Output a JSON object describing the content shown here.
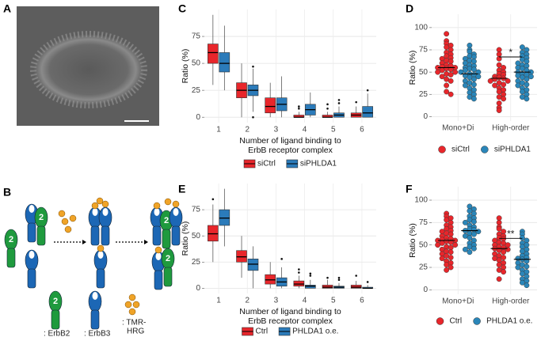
{
  "panels": [
    "A",
    "B",
    "C",
    "D",
    "E",
    "F"
  ],
  "diagram": {
    "receptor_number": "2",
    "legend": [
      ": ErbB2",
      ": ErbB3"
    ],
    "ligand_label": [
      ": TMR-",
      "HRG"
    ]
  },
  "chart_data": [
    {
      "type": "box",
      "ylabel": "Ratio (%)",
      "xlabel": [
        "Number of ligand binding to",
        "ErbB receptor complex"
      ],
      "categories": [
        "1",
        "2",
        "3",
        "4",
        "5",
        "6"
      ],
      "ylim": [
        -5,
        100
      ],
      "yticks": [
        0,
        25,
        50,
        75
      ],
      "grid": true,
      "legend": "bottom",
      "series": [
        {
          "name": "siCtrl",
          "color": "#e8262b",
          "boxes": [
            [
              30,
              50,
              60,
              68,
              95
            ],
            [
              0,
              18,
              25,
              32,
              50
            ],
            [
              0,
              4,
              10,
              18,
              32
            ],
            [
              0,
              0,
              0,
              2,
              5
            ],
            [
              0,
              0,
              0,
              2,
              5
            ],
            [
              0,
              0,
              2,
              4,
              10
            ]
          ],
          "outliers": [
            [],
            [],
            [],
            [
              8,
              10
            ],
            [
              8,
              12
            ],
            [
              14
            ]
          ]
        },
        {
          "name": "siPHLDA1",
          "color": "#2b7bba",
          "boxes": [
            [
              25,
              42,
              50,
              60,
              85
            ],
            [
              5,
              20,
              25,
              30,
              45
            ],
            [
              0,
              6,
              12,
              18,
              38
            ],
            [
              0,
              2,
              7,
              12,
              23
            ],
            [
              0,
              0,
              2,
              4,
              10
            ],
            [
              0,
              0,
              4,
              10,
              22
            ]
          ],
          "outliers": [
            [],
            [
              0,
              47
            ],
            [],
            [],
            [
              13,
              16
            ],
            [
              25
            ]
          ]
        }
      ]
    },
    {
      "type": "strip",
      "ylabel": "Ratio (%)",
      "categories": [
        "Mono+Di",
        "High-order"
      ],
      "ylim": [
        -5,
        115
      ],
      "yticks": [
        0,
        25,
        50,
        75,
        100
      ],
      "grid": true,
      "legend": "bottom",
      "annotation": "*",
      "series": [
        {
          "name": "siCtrl",
          "color": "#e8262b",
          "means": [
            55,
            43
          ],
          "values": [
            [
              93,
              85,
              82,
              80,
              78,
              75,
              72,
              70,
              68,
              66,
              65,
              63,
              62,
              60,
              58,
              57,
              56,
              55,
              55,
              54,
              53,
              52,
              50,
              50,
              48,
              47,
              45,
              42,
              40,
              35,
              28,
              25
            ],
            [
              75,
              70,
              65,
              58,
              55,
              52,
              50,
              48,
              47,
              45,
              44,
              43,
              42,
              40,
              40,
              38,
              36,
              35,
              32,
              30,
              28,
              25,
              22,
              20,
              15,
              10,
              7
            ]
          ]
        },
        {
          "name": "siPHLDA1",
          "color": "#2a86b9",
          "means": [
            48,
            50
          ],
          "values": [
            [
              80,
              75,
              73,
              70,
              68,
              67,
              65,
              63,
              62,
              60,
              58,
              57,
              55,
              54,
              53,
              52,
              50,
              50,
              48,
              47,
              46,
              45,
              44,
              42,
              40,
              38,
              36,
              35,
              32,
              30,
              27,
              25,
              22,
              20
            ],
            [
              78,
              75,
              72,
              70,
              68,
              66,
              64,
              62,
              60,
              58,
              57,
              55,
              54,
              52,
              50,
              50,
              48,
              47,
              46,
              45,
              44,
              42,
              40,
              38,
              36,
              35,
              32,
              30,
              28,
              25,
              22,
              20
            ]
          ]
        }
      ]
    },
    {
      "type": "box",
      "ylabel": "Ratio (%)",
      "xlabel": [
        "Number of ligand binding to",
        "ErbB receptor complex"
      ],
      "categories": [
        "1",
        "2",
        "3",
        "4",
        "5",
        "6"
      ],
      "ylim": [
        -5,
        100
      ],
      "yticks": [
        0,
        25,
        50,
        75
      ],
      "grid": true,
      "legend": "bottom",
      "series": [
        {
          "name": "Ctrl",
          "color": "#e8262b",
          "boxes": [
            [
              25,
              45,
              52,
              60,
              80
            ],
            [
              10,
              25,
              30,
              36,
              50
            ],
            [
              0,
              4,
              8,
              13,
              25
            ],
            [
              0,
              2,
              4,
              7,
              12
            ],
            [
              0,
              0,
              1,
              3,
              8
            ],
            [
              0,
              0,
              1,
              3,
              7
            ]
          ],
          "outliers": [
            [
              85
            ],
            [],
            [],
            [
              15,
              18
            ],
            [
              10
            ],
            [
              12
            ]
          ]
        },
        {
          "name": "PHLDA1 o.e.",
          "color": "#2b7bba",
          "boxes": [
            [
              40,
              60,
              67,
              75,
              95
            ],
            [
              0,
              17,
              23,
              28,
              40
            ],
            [
              0,
              2,
              6,
              10,
              20
            ],
            [
              0,
              0,
              2,
              3,
              8
            ],
            [
              0,
              0,
              1,
              2,
              5
            ],
            [
              0,
              0,
              0,
              1,
              3
            ]
          ],
          "outliers": [
            [],
            [],
            [
              28
            ],
            [
              12,
              14
            ],
            [
              8,
              10
            ],
            [
              6
            ]
          ]
        }
      ]
    },
    {
      "type": "strip",
      "ylabel": "Ratio (%)",
      "categories": [
        "Mono+Di",
        "High-order"
      ],
      "ylim": [
        -5,
        115
      ],
      "yticks": [
        0,
        25,
        50,
        75,
        100
      ],
      "grid": true,
      "legend": "bottom",
      "annotation": "**",
      "series": [
        {
          "name": "Ctrl",
          "color": "#e8262b",
          "means": [
            55,
            46
          ],
          "values": [
            [
              85,
              82,
              80,
              78,
              75,
              72,
              70,
              68,
              66,
              65,
              63,
              62,
              60,
              58,
              57,
              56,
              55,
              55,
              54,
              53,
              52,
              50,
              50,
              48,
              47,
              45,
              43,
              42,
              40,
              38,
              36,
              35,
              32,
              30,
              28,
              25,
              22
            ],
            [
              80,
              75,
              70,
              68,
              65,
              62,
              60,
              58,
              57,
              55,
              53,
              52,
              50,
              50,
              48,
              47,
              46,
              45,
              44,
              42,
              40,
              38,
              36,
              35,
              33,
              30,
              28,
              25,
              22,
              20,
              12
            ]
          ]
        },
        {
          "name": "PHLDA1 o.e.",
          "color": "#2a86b9",
          "means": [
            66,
            34
          ],
          "values": [
            [
              93,
              90,
              88,
              85,
              82,
              80,
              78,
              76,
              75,
              72,
              70,
              68,
              67,
              66,
              65,
              63,
              62,
              60,
              58,
              55,
              52,
              50,
              48,
              46,
              45,
              42
            ],
            [
              65,
              62,
              58,
              55,
              52,
              50,
              48,
              45,
              43,
              40,
              38,
              36,
              35,
              34,
              32,
              30,
              28,
              26,
              25,
              22,
              20,
              18,
              15,
              12,
              10,
              8,
              5
            ]
          ]
        }
      ]
    }
  ]
}
